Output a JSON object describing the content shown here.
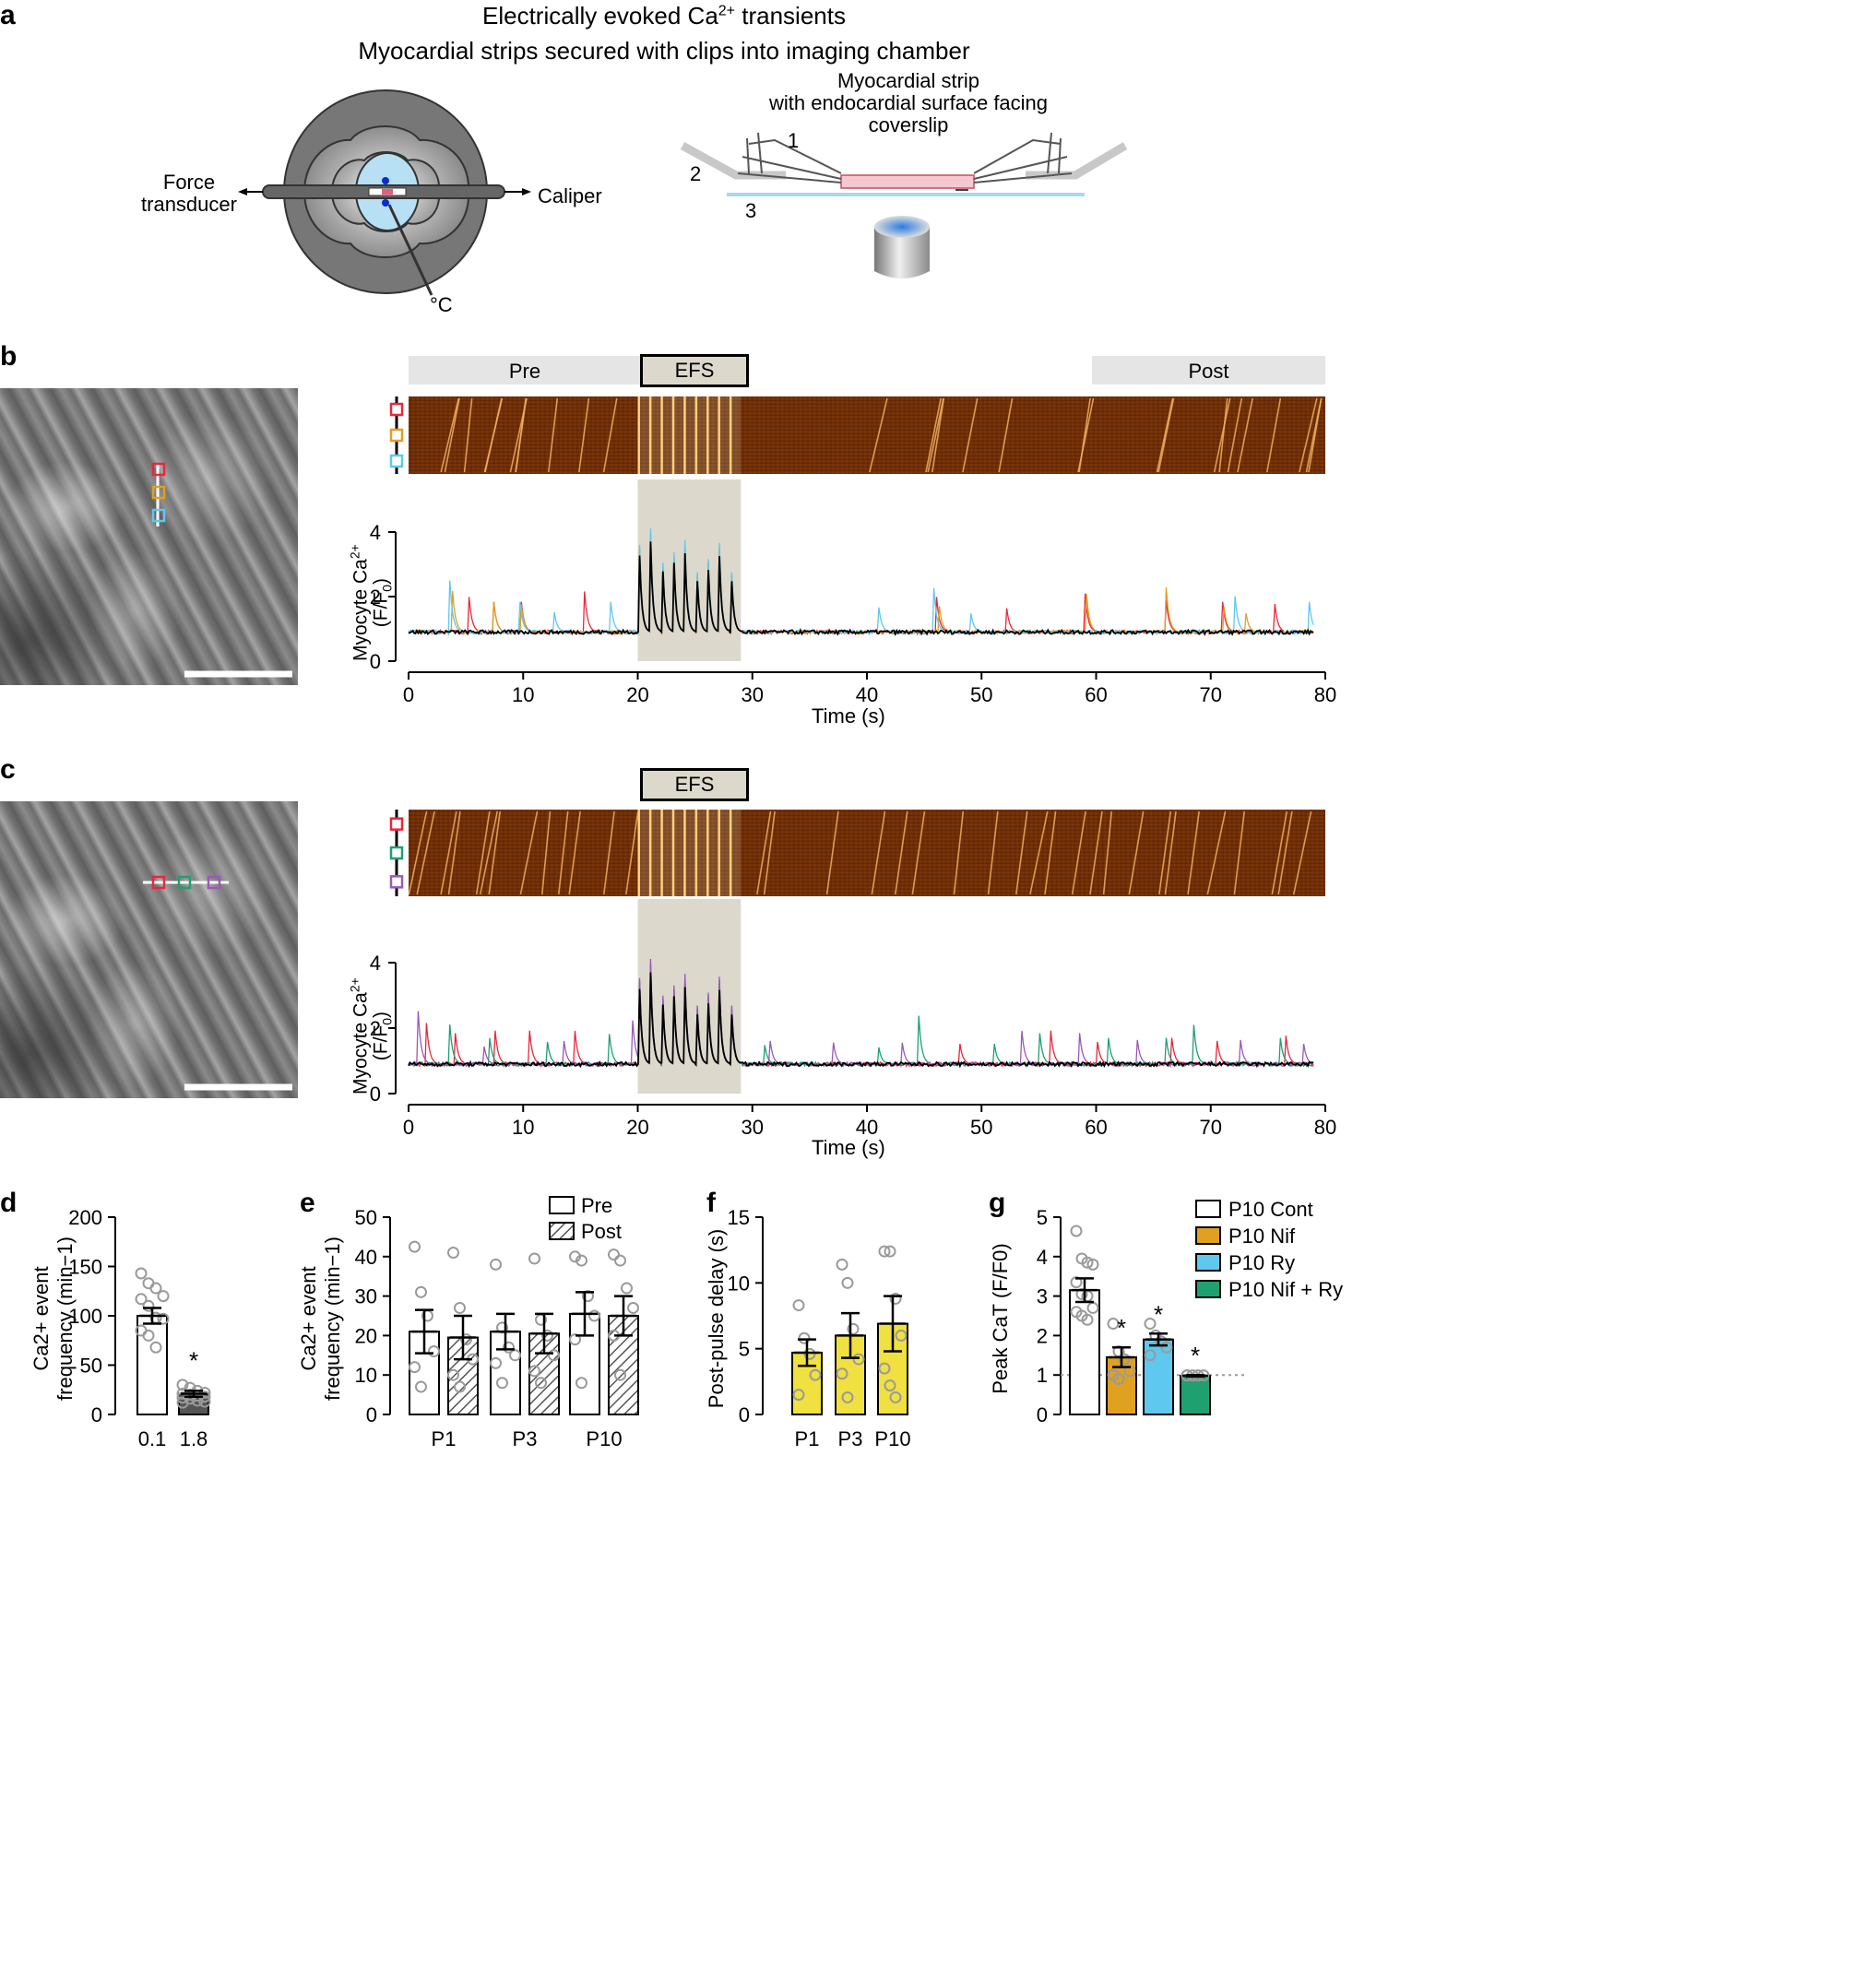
{
  "panel_labels": {
    "a": "a",
    "b": "b",
    "c": "c",
    "d": "d",
    "e": "e",
    "f": "f",
    "g": "g"
  },
  "panel_a": {
    "title1": "Electrically evoked Ca",
    "title1_sup": "2+",
    "title1_end": " transients",
    "title2": "Myocardial strips secured with clips into imaging chamber",
    "force_transducer": [
      "Force",
      "transducer"
    ],
    "caliper": "Caliper",
    "temp": "°C",
    "strip_title": [
      "Myocardial strip",
      "with endocardial surface facing coverslip"
    ],
    "num1": "1",
    "num2": "2",
    "num3": "3"
  },
  "panel_b": {
    "pre": "Pre",
    "efs": "EFS",
    "post": "Post",
    "ylabel_main": "Myocyte Ca",
    "ylabel_sup": "2+",
    "ylabel_sub": "(F/F",
    "ylabel_sub0": "0",
    "ylabel_close": ")",
    "xlabel": "Time (s)",
    "roi_colors": [
      "#e8283c",
      "#e0a020",
      "#5ec8ee"
    ]
  },
  "panel_c": {
    "efs": "EFS",
    "ylabel_main": "Myocyte Ca",
    "ylabel_sup": "2+",
    "ylabel_sub": "(F/F",
    "ylabel_sub0": "0",
    "ylabel_close": ")",
    "xlabel": "Time (s)",
    "roi_colors": [
      "#e8283c",
      "#1fa070",
      "#9b59b6"
    ]
  },
  "chart_data": [
    {
      "id": "b",
      "type": "line",
      "xlabel": "Time (s)",
      "ylabel": "Myocyte Ca2+ (F/F0)",
      "xlim": [
        0,
        80
      ],
      "ylim": [
        0,
        4
      ],
      "xticks": [
        0,
        10,
        20,
        30,
        40,
        50,
        60,
        70,
        80
      ],
      "yticks": [
        0,
        2,
        4
      ],
      "efs_window": [
        20,
        29
      ],
      "baseline": 0.9,
      "efs_peaks_s": [
        20.1,
        21.1,
        22.1,
        23.1,
        24.1,
        25.1,
        26.1,
        27.1,
        28.1
      ],
      "efs_peak_values": [
        4.1,
        4.0,
        4.0,
        3.8,
        3.6,
        3.5,
        3.5,
        3.5,
        3.5
      ],
      "series": [
        {
          "color": "#e8283c",
          "spikes": [
            [
              5.2,
              2.4
            ],
            [
              7.4,
              2.0
            ],
            [
              9.8,
              2.0
            ],
            [
              15.3,
              2.5
            ],
            [
              46.0,
              2.4
            ],
            [
              52.1,
              2.0
            ],
            [
              59.0,
              2.3
            ],
            [
              66.0,
              2.5
            ],
            [
              71.0,
              2.0
            ],
            [
              75.5,
              2.2
            ],
            [
              79.0,
              2.0
            ]
          ]
        },
        {
          "color": "#e0a020",
          "spikes": [
            [
              3.8,
              2.4
            ],
            [
              7.4,
              2.0
            ],
            [
              9.8,
              1.9
            ],
            [
              46.2,
              2.2
            ],
            [
              59.1,
              2.4
            ],
            [
              66.1,
              2.4
            ],
            [
              71.1,
              1.9
            ],
            [
              73.0,
              1.7
            ],
            [
              79.1,
              2.0
            ]
          ]
        },
        {
          "color": "#5ec8ee",
          "spikes": [
            [
              3.6,
              2.5
            ],
            [
              9.6,
              2.4
            ],
            [
              12.6,
              1.9
            ],
            [
              17.6,
              2.0
            ],
            [
              41.0,
              1.8
            ],
            [
              45.8,
              2.5
            ],
            [
              49.0,
              1.7
            ],
            [
              72.1,
              2.1
            ],
            [
              78.5,
              2.3
            ]
          ]
        }
      ]
    },
    {
      "id": "c",
      "type": "line",
      "xlabel": "Time (s)",
      "ylabel": "Myocyte Ca2+ (F/F0)",
      "xlim": [
        0,
        80
      ],
      "ylim": [
        0,
        4
      ],
      "xticks": [
        0,
        10,
        20,
        30,
        40,
        50,
        60,
        70,
        80
      ],
      "yticks": [
        0,
        2,
        4
      ],
      "efs_window": [
        20,
        29
      ],
      "baseline": 0.9,
      "efs_peaks_s": [
        20.1,
        21.1,
        22.1,
        23.1,
        24.1,
        25.1,
        26.1,
        27.1,
        28.1
      ],
      "efs_peak_values": [
        4.0,
        4.0,
        3.9,
        3.7,
        3.5,
        3.4,
        3.4,
        3.4,
        3.4
      ],
      "series": [
        {
          "color": "#e8283c",
          "spikes": [
            [
              1.5,
              2.5
            ],
            [
              4.0,
              2.2
            ],
            [
              7.5,
              2.2
            ],
            [
              10.5,
              2.2
            ],
            [
              14.5,
              2.0
            ],
            [
              48.0,
              1.9
            ],
            [
              56.0,
              2.1
            ],
            [
              60.0,
              2.0
            ],
            [
              66.5,
              2.1
            ],
            [
              70.5,
              1.8
            ],
            [
              76.5,
              2.0
            ]
          ]
        },
        {
          "color": "#1fa070",
          "spikes": [
            [
              3.5,
              2.7
            ],
            [
              7.0,
              2.0
            ],
            [
              12.0,
              2.0
            ],
            [
              17.5,
              1.9
            ],
            [
              31.0,
              1.7
            ],
            [
              41.0,
              1.5
            ],
            [
              44.5,
              2.5
            ],
            [
              51.0,
              1.9
            ],
            [
              55.0,
              2.2
            ],
            [
              61.0,
              2.0
            ],
            [
              66.0,
              2.2
            ],
            [
              68.5,
              2.2
            ],
            [
              76.0,
              2.0
            ]
          ]
        },
        {
          "color": "#9b59b6",
          "spikes": [
            [
              0.8,
              2.8
            ],
            [
              6.5,
              1.7
            ],
            [
              13.5,
              1.8
            ],
            [
              19.5,
              2.6
            ],
            [
              31.5,
              1.8
            ],
            [
              37.0,
              1.8
            ],
            [
              43.0,
              1.8
            ],
            [
              53.5,
              2.0
            ],
            [
              58.5,
              2.1
            ],
            [
              63.5,
              2.0
            ],
            [
              72.5,
              2.0
            ],
            [
              78.0,
              1.9
            ]
          ]
        }
      ]
    },
    {
      "id": "d",
      "type": "bar",
      "categories": [
        "0.1",
        "1.8"
      ],
      "values": [
        100,
        21
      ],
      "sem": [
        8,
        3
      ],
      "ylim": [
        0,
        200
      ],
      "yticks": [
        0,
        50,
        100,
        150,
        200
      ],
      "ylabel": [
        "Ca2+ event",
        "frequency (min−1)"
      ],
      "points": [
        [
          143,
          133,
          128,
          120,
          117,
          110,
          98,
          97,
          85,
          80,
          68
        ],
        [
          30,
          27,
          24,
          22,
          21,
          20,
          19,
          18,
          17,
          16,
          14,
          13,
          12
        ]
      ],
      "sig": [
        false,
        true
      ],
      "fills": [
        "#ffffff",
        "#555555"
      ]
    },
    {
      "id": "e",
      "type": "bar",
      "categories": [
        "P1",
        "P3",
        "P10"
      ],
      "series": [
        {
          "name": "Pre",
          "values": [
            21,
            21,
            25.5
          ],
          "sem": [
            5.5,
            4.5,
            5.5
          ],
          "points": [
            [
              42.5,
              31,
              25,
              16,
              12,
              7
            ],
            [
              38,
              22,
              17,
              15,
              13,
              8
            ],
            [
              40,
              39,
              30,
              25,
              19,
              8
            ]
          ]
        },
        {
          "name": "Post",
          "values": [
            19.5,
            20.5,
            25
          ],
          "sem": [
            5.5,
            5.0,
            5.0
          ],
          "points": [
            [
              41,
              27,
              19,
              14,
              10,
              7
            ],
            [
              39.5,
              24,
              20,
              15,
              11,
              8
            ],
            [
              40.5,
              39,
              32,
              27,
              20,
              10
            ]
          ]
        }
      ],
      "ylim": [
        0,
        50
      ],
      "yticks": [
        0,
        10,
        20,
        30,
        40,
        50
      ],
      "ylabel": [
        "Ca2+ event",
        "frequency (min−1)"
      ],
      "legend": [
        "Pre",
        "Post"
      ]
    },
    {
      "id": "f",
      "type": "bar",
      "categories": [
        "P1",
        "P3",
        "P10"
      ],
      "values": [
        4.7,
        6.0,
        6.9
      ],
      "sem": [
        1.0,
        1.7,
        2.1
      ],
      "points": [
        [
          8.3,
          5.8,
          4.6,
          3.0,
          1.5
        ],
        [
          11.4,
          10.0,
          6.5,
          4.2,
          3.1,
          1.3
        ],
        [
          12.4,
          12.4,
          8.8,
          6.0,
          3.5,
          2.2,
          1.3
        ]
      ],
      "ylim": [
        0,
        15
      ],
      "yticks": [
        0,
        5,
        10,
        15
      ],
      "ylabel": "Post-pulse delay (s)",
      "fill": "#f0e040"
    },
    {
      "id": "g",
      "type": "bar",
      "categories": [
        "P10 Cont",
        "P10 Nif",
        "P10 Ry",
        "P10 Nif + Ry"
      ],
      "values": [
        3.15,
        1.45,
        1.9,
        0.98
      ],
      "sem": [
        0.3,
        0.25,
        0.15,
        0.02
      ],
      "points": [
        [
          4.65,
          3.95,
          3.85,
          3.8,
          3.35,
          3.05,
          3.0,
          2.7,
          2.6,
          2.5,
          2.4
        ],
        [
          2.3,
          1.6,
          1.4,
          1.1,
          1.0,
          0.9
        ],
        [
          2.3,
          2.0,
          1.85,
          1.7,
          1.5
        ],
        [
          0.99,
          0.99,
          0.99,
          0.99,
          0.99
        ]
      ],
      "sig": [
        false,
        true,
        true,
        true
      ],
      "reference_line": 1.0,
      "ylim": [
        0,
        5
      ],
      "yticks": [
        0,
        1,
        2,
        3,
        4,
        5
      ],
      "ylabel": "Peak CaT (F/F0)",
      "fills": [
        "#ffffff",
        "#e0a020",
        "#5ec8ee",
        "#1fa070"
      ],
      "legend": [
        "P10 Cont",
        "P10 Nif",
        "P10 Ry",
        "P10 Nif + Ry"
      ]
    }
  ],
  "star": "*"
}
